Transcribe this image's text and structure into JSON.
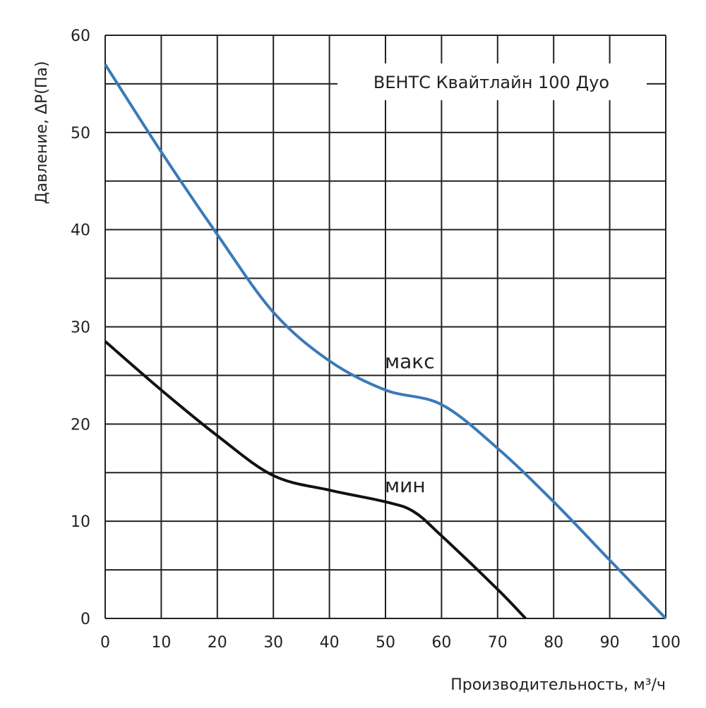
{
  "chart_data": {
    "type": "line",
    "title": "ВЕНТС Квайтлайн 100 Дуо",
    "xlabel": "Производительность, м³/ч",
    "ylabel": "Давление, ΔP(Па)",
    "xlim": [
      0,
      100
    ],
    "ylim": [
      0,
      60
    ],
    "xticks": [
      0,
      10,
      20,
      30,
      40,
      50,
      60,
      70,
      80,
      90,
      100
    ],
    "yticks": [
      0,
      10,
      20,
      30,
      40,
      50,
      60
    ],
    "grid": true,
    "series": [
      {
        "name": "макс",
        "color": "#3a7ab8",
        "x": [
          0,
          10,
          20,
          30,
          40,
          50,
          60,
          70,
          80,
          90,
          100
        ],
        "y": [
          57,
          48,
          39.5,
          31.5,
          26.5,
          23.5,
          22,
          17.5,
          12,
          6,
          0
        ]
      },
      {
        "name": "мин",
        "color": "#111111",
        "x": [
          0,
          10,
          20,
          30,
          40,
          50,
          55,
          60,
          70,
          75
        ],
        "y": [
          28.5,
          23.5,
          18.8,
          14.7,
          13.2,
          12,
          11,
          8.5,
          3,
          0
        ]
      }
    ]
  }
}
